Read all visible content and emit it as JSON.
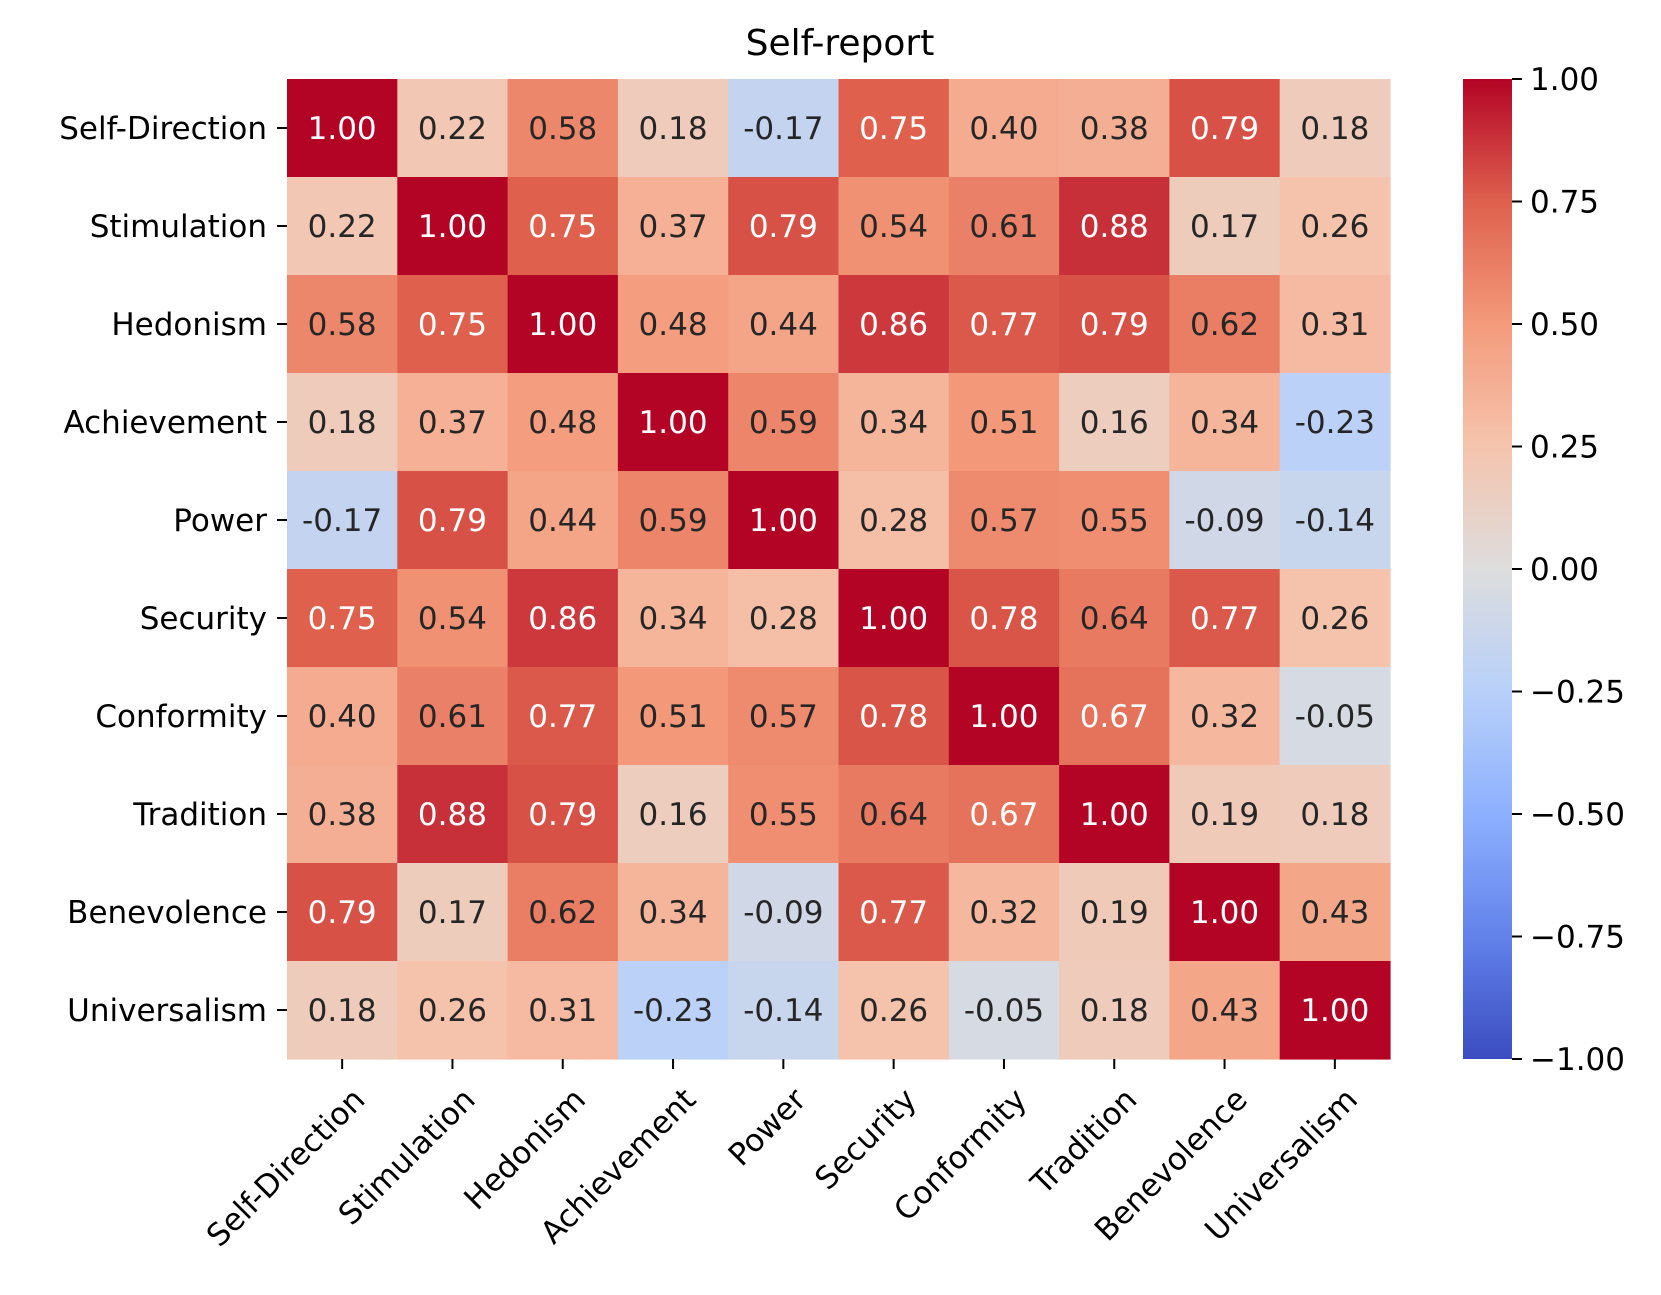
{
  "chart_data": {
    "type": "heatmap",
    "title": "Self-report",
    "row_labels": [
      "Self-Direction",
      "Stimulation",
      "Hedonism",
      "Achievement",
      "Power",
      "Security",
      "Conformity",
      "Tradition",
      "Benevolence",
      "Universalism"
    ],
    "col_labels": [
      "Self-Direction",
      "Stimulation",
      "Hedonism",
      "Achievement",
      "Power",
      "Security",
      "Conformity",
      "Tradition",
      "Benevolence",
      "Universalism"
    ],
    "values": [
      [
        1.0,
        0.22,
        0.58,
        0.18,
        -0.17,
        0.75,
        0.4,
        0.38,
        0.79,
        0.18
      ],
      [
        0.22,
        1.0,
        0.75,
        0.37,
        0.79,
        0.54,
        0.61,
        0.88,
        0.17,
        0.26
      ],
      [
        0.58,
        0.75,
        1.0,
        0.48,
        0.44,
        0.86,
        0.77,
        0.79,
        0.62,
        0.31
      ],
      [
        0.18,
        0.37,
        0.48,
        1.0,
        0.59,
        0.34,
        0.51,
        0.16,
        0.34,
        -0.23
      ],
      [
        -0.17,
        0.79,
        0.44,
        0.59,
        1.0,
        0.28,
        0.57,
        0.55,
        -0.09,
        -0.14
      ],
      [
        0.75,
        0.54,
        0.86,
        0.34,
        0.28,
        1.0,
        0.78,
        0.64,
        0.77,
        0.26
      ],
      [
        0.4,
        0.61,
        0.77,
        0.51,
        0.57,
        0.78,
        1.0,
        0.67,
        0.32,
        -0.05
      ],
      [
        0.38,
        0.88,
        0.79,
        0.16,
        0.55,
        0.64,
        0.67,
        1.0,
        0.19,
        0.18
      ],
      [
        0.79,
        0.17,
        0.62,
        0.34,
        -0.09,
        0.77,
        0.32,
        0.19,
        1.0,
        0.43
      ],
      [
        0.18,
        0.26,
        0.31,
        -0.23,
        -0.14,
        0.26,
        -0.05,
        0.18,
        0.43,
        1.0
      ]
    ],
    "annotation_format": "2 decimals",
    "colormap": "coolwarm",
    "vmin": -1.0,
    "vmax": 1.0,
    "colorbar_ticks": [
      1.0,
      0.75,
      0.5,
      0.25,
      0.0,
      -0.25,
      -0.5,
      -0.75,
      -1.0
    ],
    "colorbar_tick_labels": [
      "1.00",
      "0.75",
      "0.50",
      "0.25",
      "0.00",
      "−0.25",
      "−0.50",
      "−0.75",
      "−1.00"
    ]
  }
}
